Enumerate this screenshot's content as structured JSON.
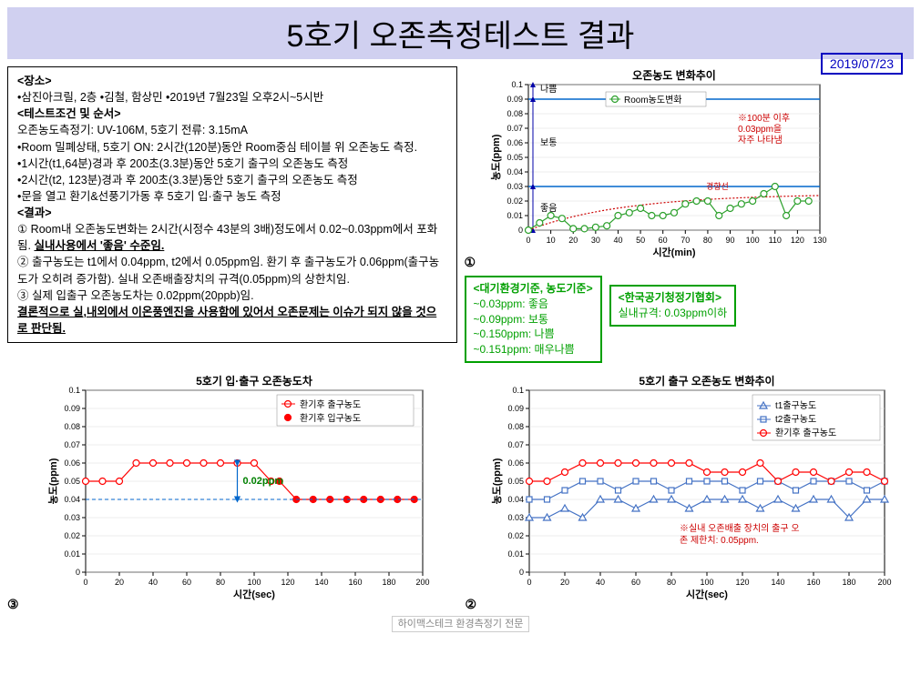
{
  "title": "5호기 오존측정테스트 결과",
  "date": "2019/07/23",
  "block": {
    "loc_hdr": "<장소>",
    "loc": "•삼진아크릴, 2층 •김철, 함상민 •2019년 7월23일 오후2시~5시반",
    "cond_hdr": "<테스트조건 및 순서>",
    "cond1": "오존농도측정기: UV-106M, 5호기 전류: 3.15mA",
    "cond2": "•Room 밀폐상태, 5호기 ON: 2시간(120분)동안 Room중심 테이블 위 오존농도 측정.",
    "cond3": "•1시간(t1,64분)경과 후 200초(3.3분)동안 5호기 출구의 오존농도 측정",
    "cond4": "•2시간(t2, 123분)경과 후 200초(3.3분)동안 5호기 출구의 오존농도 측정",
    "cond5": "•문을 열고 환기&선풍기가동 후 5호기 입·출구 농도 측정",
    "res_hdr": "<결과>",
    "res1": "① Room내 오존농도변화는 2시간(시정수 43분의 3배)정도에서 0.02~0.03ppm에서 포화됨. ",
    "res1u": "실내사용에서 '좋음' 수준임.",
    "res2": "② 출구농도는 t1에서 0.04ppm, t2에서 0.05ppm임. 환기 후 출구농도가 0.06ppm(출구농도가 오히려 증가함). 실내 오존배출장치의 규격(0.05ppm)의 상한치임.",
    "res3": "③ 실제 입출구 오존농도차는 0.02ppm(20ppb)임.",
    "concl": "결론적으로 실,내외에서 이온풍엔진을 사용함에 있어서 오존문제는 이슈가 되지 않을 것으로 판단됨."
  },
  "gb1": {
    "hdr": "<대기환경기준, 농도기준>",
    "l1": "~0.03ppm: 좋음",
    "l2": "~0.09ppm: 보통",
    "l3": "~0.150ppm: 나쁨",
    "l4": "~0.151ppm: 매우나쁨"
  },
  "gb2": {
    "hdr": "<한국공기청정기협회>",
    "l1": "실내규격: 0.03ppm이하"
  },
  "chart1": {
    "title": "오존농도 변화추이",
    "ylabel": "농도(ppm)",
    "xlabel": "시간(min)",
    "legend": "Room농도변화",
    "ylim": [
      0,
      0.1
    ],
    "xlim": [
      0,
      130
    ],
    "yticks": [
      0,
      0.01,
      0.02,
      0.03,
      0.04,
      0.05,
      0.06,
      0.07,
      0.08,
      0.09,
      0.1
    ],
    "xticks": [
      0,
      10,
      20,
      30,
      40,
      50,
      60,
      70,
      80,
      90,
      100,
      110,
      120,
      130
    ],
    "data_x": [
      0,
      5,
      10,
      15,
      20,
      25,
      30,
      35,
      40,
      45,
      50,
      55,
      60,
      65,
      70,
      75,
      80,
      85,
      90,
      95,
      100,
      105,
      110,
      115,
      120,
      125
    ],
    "data_y": [
      0,
      0.005,
      0.01,
      0.008,
      0.001,
      0.001,
      0.002,
      0.003,
      0.01,
      0.012,
      0.015,
      0.01,
      0.01,
      0.012,
      0.018,
      0.02,
      0.02,
      0.01,
      0.015,
      0.018,
      0.02,
      0.025,
      0.03,
      0.01,
      0.02,
      0.02
    ],
    "series_color": "#2ca02c",
    "text_bad": "나쁨",
    "text_mid": "보통",
    "text_good": "좋음",
    "trend_label": "경향선",
    "note": "※100분 이후 0.03ppm을 자주 나타냄"
  },
  "chart2": {
    "title": "5호기 출구 오존농도 변화추이",
    "ylabel": "농도(ppm)",
    "xlabel": "시간(sec)",
    "ylim": [
      0,
      0.1
    ],
    "xlim": [
      0,
      200
    ],
    "yticks": [
      0,
      0.01,
      0.02,
      0.03,
      0.04,
      0.05,
      0.06,
      0.07,
      0.08,
      0.09,
      0.1
    ],
    "xticks": [
      0,
      20,
      40,
      60,
      80,
      100,
      120,
      140,
      160,
      180,
      200
    ],
    "legend": [
      "t1출구농도",
      "t2출구농도",
      "환기후 출구농도"
    ],
    "colors": [
      "#4472c4",
      "#4472c4",
      "#ff0000"
    ],
    "markers": [
      "triangle",
      "square",
      "circle"
    ],
    "t1_y": [
      0.03,
      0.03,
      0.035,
      0.03,
      0.04,
      0.04,
      0.035,
      0.04,
      0.04,
      0.035,
      0.04,
      0.04,
      0.04,
      0.035,
      0.04,
      0.035,
      0.04,
      0.04,
      0.03,
      0.04,
      0.04
    ],
    "t2_y": [
      0.04,
      0.04,
      0.045,
      0.05,
      0.05,
      0.045,
      0.05,
      0.05,
      0.045,
      0.05,
      0.05,
      0.05,
      0.045,
      0.05,
      0.05,
      0.045,
      0.05,
      0.05,
      0.05,
      0.045,
      0.05
    ],
    "t3_y": [
      0.05,
      0.05,
      0.055,
      0.06,
      0.06,
      0.06,
      0.06,
      0.06,
      0.06,
      0.06,
      0.055,
      0.055,
      0.055,
      0.06,
      0.05,
      0.055,
      0.055,
      0.05,
      0.055,
      0.055,
      0.05
    ],
    "x_step": 10,
    "note": "※실내 오존배출 장치의 출구 오존 제한치: 0.05ppm."
  },
  "chart3": {
    "title": "5호기 입·출구 오존농도차",
    "ylabel": "농도(ppm)",
    "xlabel": "시간(sec)",
    "ylim": [
      0,
      0.1
    ],
    "xlim": [
      0,
      200
    ],
    "yticks": [
      0,
      0.01,
      0.02,
      0.03,
      0.04,
      0.05,
      0.06,
      0.07,
      0.08,
      0.09,
      0.1
    ],
    "xticks": [
      0,
      20,
      40,
      60,
      80,
      100,
      120,
      140,
      160,
      180,
      200
    ],
    "legend": [
      "환기후 출구농도",
      "환기후 입구농도"
    ],
    "colors": [
      "#ff0000",
      "#ff0000"
    ],
    "out_y": [
      0.05,
      0.05,
      0.05,
      0.06,
      0.06,
      0.06,
      0.06,
      0.06,
      0.06,
      0.06,
      0.06,
      0.05
    ],
    "in_y": [
      0.05,
      0.04,
      0.04,
      0.04,
      0.04,
      0.04,
      0.04,
      0.04,
      0.04
    ],
    "out_xstart": 0,
    "in_xstart": 115,
    "diff_label": "0.02ppm"
  },
  "footer": "하이맥스테크 환경측정기 전문"
}
